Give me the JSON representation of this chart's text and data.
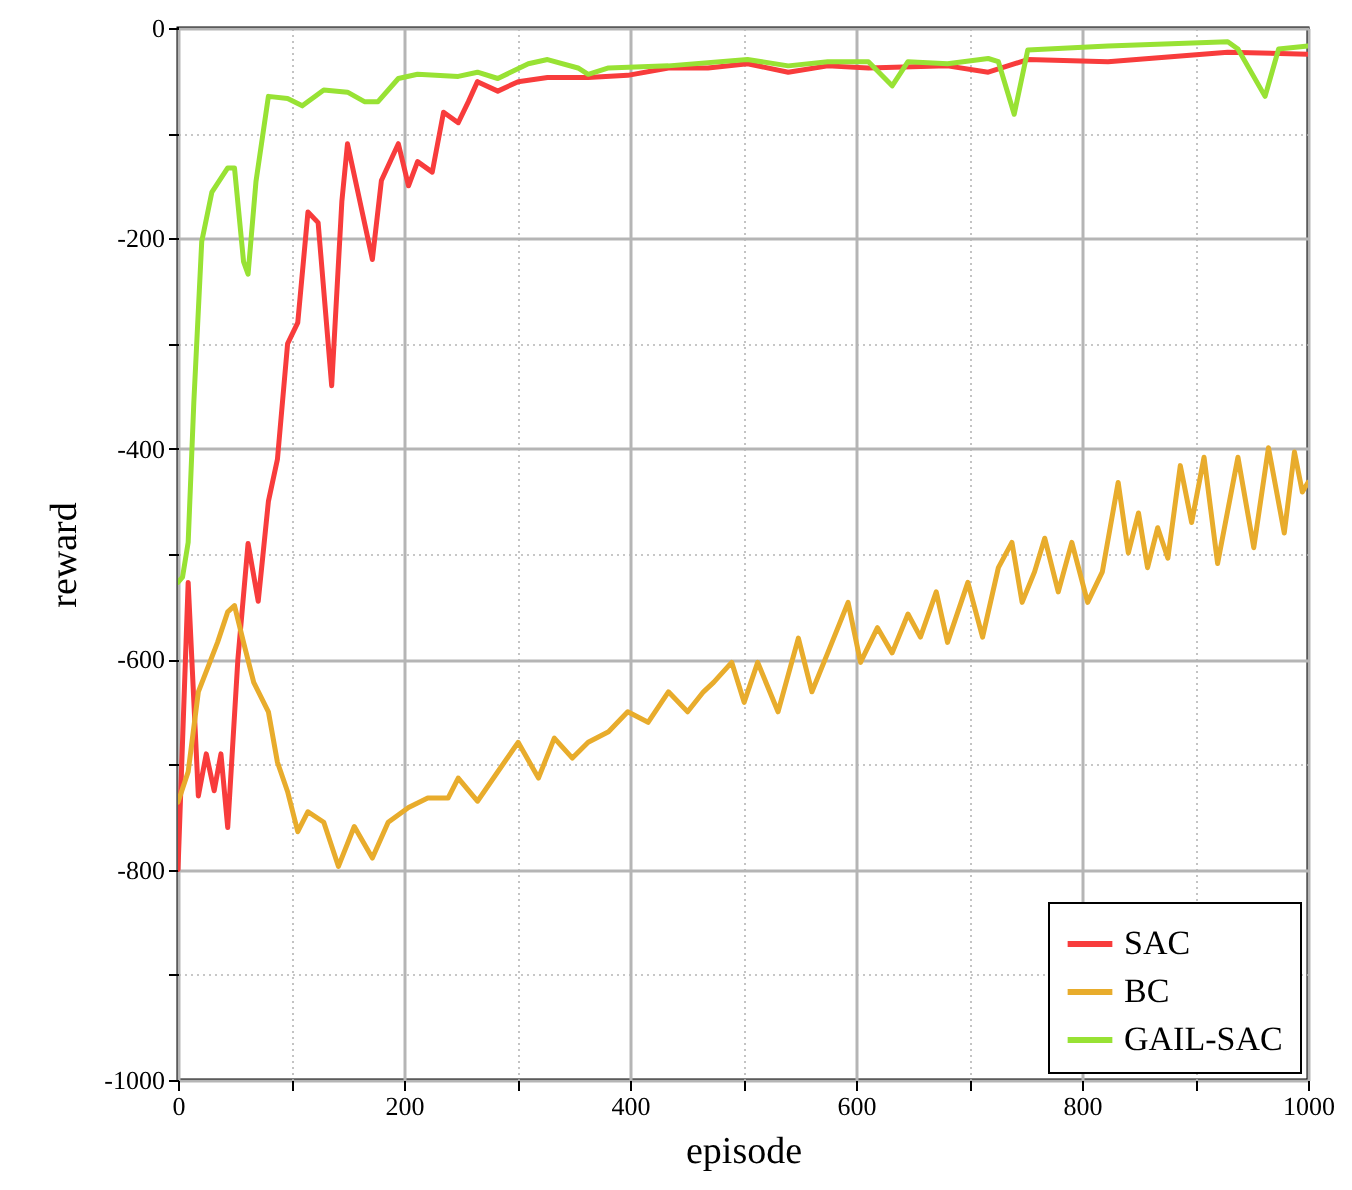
{
  "chart_data": {
    "type": "line",
    "xlabel": "episode",
    "ylabel": "reward",
    "xlim": [
      0,
      1000
    ],
    "ylim": [
      -1000,
      0
    ],
    "xticks": [
      0,
      {
        "value": 100,
        "label": null
      },
      200,
      {
        "value": 300,
        "label": null
      },
      400,
      {
        "value": 500,
        "label": null
      },
      600,
      {
        "value": 700,
        "label": null
      },
      800,
      {
        "value": 900,
        "label": null
      },
      1000
    ],
    "yticks": [
      -1000,
      {
        "value": -900,
        "label": null
      },
      -800,
      {
        "value": -700,
        "label": null
      },
      -600,
      {
        "value": -500,
        "label": null
      },
      -400,
      {
        "value": -300,
        "label": null
      },
      -200,
      {
        "value": -100,
        "label": null
      },
      0
    ],
    "grid": true,
    "legend": "bottom right",
    "line_style": "solid",
    "series": [
      {
        "name": "SAC",
        "color": "#f83c3c",
        "x": [
          0,
          9,
          18,
          25,
          32,
          38,
          44,
          53,
          62,
          71,
          80,
          88,
          97,
          106,
          115,
          124,
          136,
          145,
          150,
          159,
          172,
          180,
          195,
          204,
          212,
          225,
          235,
          248,
          257,
          265,
          283,
          301,
          327,
          363,
          398,
          434,
          469,
          504,
          540,
          575,
          611,
          681,
          717,
          752,
          823,
          929,
          1000
        ],
        "values": [
          -800,
          -527,
          -730,
          -690,
          -725,
          -690,
          -760,
          -600,
          -490,
          -545,
          -450,
          -410,
          -300,
          -280,
          -175,
          -185,
          -340,
          -165,
          -110,
          -155,
          -220,
          -145,
          -110,
          -150,
          -127,
          -137,
          -80,
          -90,
          -70,
          -51,
          -60,
          -51,
          -47,
          -47,
          -45,
          -38,
          -38,
          -34,
          -42,
          -36,
          -38,
          -36,
          -42,
          -30,
          -32,
          -23,
          -25
        ]
      },
      {
        "name": "BC",
        "color": "#e8ac2c",
        "x": [
          0,
          9,
          18,
          35,
          44,
          50,
          58,
          67,
          80,
          88,
          97,
          106,
          115,
          129,
          142,
          156,
          172,
          186,
          204,
          221,
          239,
          248,
          265,
          283,
          301,
          319,
          333,
          349,
          363,
          381,
          398,
          416,
          434,
          451,
          465,
          474,
          490,
          501,
          513,
          531,
          549,
          561,
          575,
          593,
          604,
          619,
          632,
          646,
          657,
          671,
          681,
          699,
          712,
          726,
          738,
          747,
          758,
          767,
          779,
          791,
          805,
          818,
          832,
          841,
          850,
          858,
          867,
          876,
          887,
          897,
          908,
          920,
          938,
          952,
          965,
          979,
          988,
          995,
          1000
        ],
        "values": [
          -736,
          -707,
          -631,
          -584,
          -555,
          -549,
          -584,
          -622,
          -650,
          -698,
          -726,
          -764,
          -745,
          -755,
          -797,
          -759,
          -789,
          -755,
          -741,
          -732,
          -732,
          -713,
          -735,
          -707,
          -679,
          -713,
          -675,
          -694,
          -679,
          -669,
          -650,
          -660,
          -631,
          -650,
          -631,
          -622,
          -603,
          -641,
          -603,
          -650,
          -580,
          -631,
          -594,
          -546,
          -603,
          -570,
          -594,
          -557,
          -579,
          -536,
          -584,
          -527,
          -579,
          -513,
          -489,
          -546,
          -517,
          -485,
          -536,
          -489,
          -546,
          -517,
          -432,
          -499,
          -461,
          -513,
          -475,
          -504,
          -416,
          -470,
          -408,
          -509,
          -408,
          -494,
          -399,
          -480,
          -403,
          -441,
          -432
        ]
      },
      {
        "name": "GAIL-SAC",
        "color": "#98e234",
        "x": [
          0,
          4,
          9,
          14,
          21,
          30,
          44,
          50,
          58,
          62,
          69,
          80,
          97,
          110,
          129,
          150,
          165,
          177,
          195,
          212,
          248,
          265,
          283,
          310,
          327,
          354,
          363,
          381,
          434,
          504,
          540,
          575,
          611,
          632,
          646,
          681,
          717,
          726,
          740,
          752,
          823,
          929,
          938,
          962,
          974,
          1000
        ],
        "values": [
          -527,
          -522,
          -489,
          -356,
          -203,
          -156,
          -133,
          -133,
          -222,
          -234,
          -146,
          -65,
          -67,
          -74,
          -59,
          -61,
          -70,
          -70,
          -48,
          -44,
          -46,
          -42,
          -48,
          -34,
          -30,
          -38,
          -44,
          -38,
          -36,
          -30,
          -36,
          -32,
          -32,
          -55,
          -32,
          -34,
          -29,
          -32,
          -82,
          -21,
          -17,
          -13,
          -20,
          -65,
          -20,
          -17
        ]
      }
    ]
  }
}
